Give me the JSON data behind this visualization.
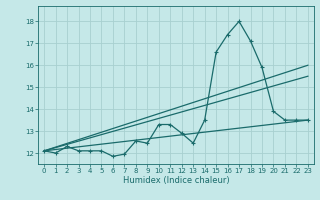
{
  "xlabel": "Humidex (Indice chaleur)",
  "background_color": "#c5e8e8",
  "grid_color": "#a8d0d0",
  "line_color": "#1a6b6b",
  "xlim": [
    -0.5,
    23.5
  ],
  "ylim": [
    11.5,
    18.7
  ],
  "xticks": [
    0,
    1,
    2,
    3,
    4,
    5,
    6,
    7,
    8,
    9,
    10,
    11,
    12,
    13,
    14,
    15,
    16,
    17,
    18,
    19,
    20,
    21,
    22,
    23
  ],
  "yticks": [
    12,
    13,
    14,
    15,
    16,
    17,
    18
  ],
  "series1_x": [
    0,
    1,
    2,
    3,
    4,
    5,
    6,
    7,
    8,
    9,
    10,
    11,
    12,
    13,
    14,
    15,
    16,
    17,
    18,
    19,
    20,
    21,
    22,
    23
  ],
  "series1_y": [
    12.1,
    12.0,
    12.3,
    12.1,
    12.1,
    12.1,
    11.85,
    11.95,
    12.55,
    12.45,
    13.3,
    13.3,
    12.9,
    12.45,
    13.5,
    16.6,
    17.4,
    18.0,
    17.1,
    15.9,
    13.9,
    13.5,
    13.5,
    13.5
  ],
  "series2_x": [
    0,
    23
  ],
  "series2_y": [
    12.1,
    13.5
  ],
  "series3_x": [
    0,
    23
  ],
  "series3_y": [
    12.1,
    15.5
  ],
  "series4_x": [
    0,
    23
  ],
  "series4_y": [
    12.1,
    16.0
  ]
}
